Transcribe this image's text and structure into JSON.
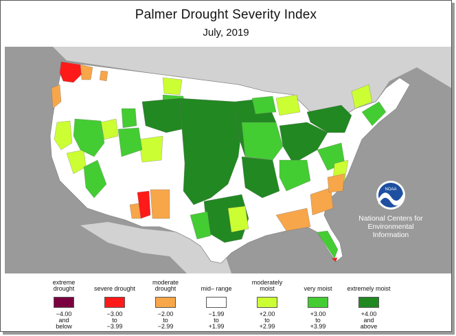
{
  "title": "Palmer Drought Severity Index",
  "subtitle": "July, 2019",
  "agency": {
    "logo_text": "NOAA",
    "name_lines": [
      "National Centers for",
      "Environmental",
      "Information"
    ]
  },
  "colors": {
    "extreme_drought": "#7a0040",
    "severe_drought": "#ff1a1a",
    "moderate_drought": "#f7a64a",
    "mid_range": "#ffffff",
    "moderately_moist": "#ccff33",
    "very_moist": "#44cc33",
    "extremely_moist": "#228822",
    "ocean": "#9a9a9a"
  },
  "legend": [
    {
      "label": "extreme drought",
      "color": "#7a0040",
      "range": [
        "−4.00",
        "and",
        "below"
      ]
    },
    {
      "label": "severe drought",
      "color": "#ff1a1a",
      "range": [
        "−3.00",
        "to",
        "−3.99"
      ]
    },
    {
      "label": "moderate drought",
      "color": "#f7a64a",
      "range": [
        "−2.00",
        "to",
        "−2.99"
      ]
    },
    {
      "label": "mid– range",
      "color": "#ffffff",
      "range": [
        "−1.99",
        "to",
        "+1.99"
      ]
    },
    {
      "label": "moderately moist",
      "color": "#ccff33",
      "range": [
        "+2.00",
        "to",
        "+2.99"
      ]
    },
    {
      "label": "very moist",
      "color": "#44cc33",
      "range": [
        "+3.00",
        "to",
        "+3.99"
      ]
    },
    {
      "label": "extremely moist",
      "color": "#228822",
      "range": [
        "+4.00",
        "and",
        "above"
      ]
    }
  ]
}
